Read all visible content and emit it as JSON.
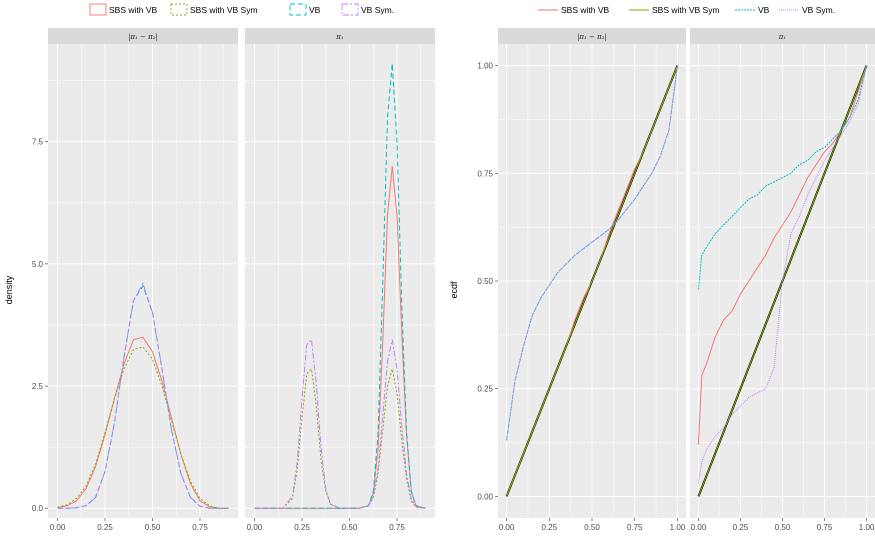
{
  "chart_data": [
    {
      "type": "line",
      "plot": "density",
      "ylabel": "density",
      "xlabel": "",
      "legend_position": "top",
      "legend_style": "box",
      "ylim": [
        -0.2,
        9.5
      ],
      "xlim": [
        -0.05,
        0.95
      ],
      "x_ticks": [
        "0.00",
        "0.25",
        "0.50",
        "0.75"
      ],
      "y_ticks": [
        "0.0",
        "2.5",
        "5.0",
        "7.5"
      ],
      "grid": true,
      "series": [
        {
          "name": "SBS with VB",
          "color": "#F8766D",
          "dash": ""
        },
        {
          "name": "SBS with VB Sym",
          "color": "#7CAE00",
          "dash": "2,2"
        },
        {
          "name": "VB",
          "color": "#00BFC4",
          "dash": "5,3"
        },
        {
          "name": "VB Sym.",
          "color": "#C77CFF",
          "dash": "6,2,2,2"
        }
      ],
      "panels": [
        {
          "strip": "|π₁ − π₂|",
          "x": [
            0.0,
            0.05,
            0.1,
            0.15,
            0.2,
            0.25,
            0.3,
            0.35,
            0.4,
            0.45,
            0.5,
            0.55,
            0.6,
            0.65,
            0.7,
            0.75,
            0.8,
            0.85,
            0.9
          ],
          "values": [
            [
              0.01,
              0.05,
              0.15,
              0.4,
              0.85,
              1.5,
              2.25,
              2.95,
              3.45,
              3.5,
              3.2,
              2.6,
              1.85,
              1.1,
              0.5,
              0.15,
              0.03,
              0.0,
              0.0
            ],
            [
              0.02,
              0.07,
              0.2,
              0.45,
              0.9,
              1.55,
              2.25,
              2.85,
              3.25,
              3.3,
              3.05,
              2.5,
              1.8,
              1.1,
              0.55,
              0.2,
              0.05,
              0.0,
              0.0
            ],
            [
              0.0,
              0.0,
              0.01,
              0.05,
              0.22,
              0.75,
              1.75,
              3.1,
              4.25,
              4.55,
              4.0,
              2.85,
              1.6,
              0.7,
              0.22,
              0.04,
              0.0,
              0.0,
              0.0
            ],
            [
              0.0,
              0.0,
              0.01,
              0.05,
              0.22,
              0.75,
              1.75,
              3.1,
              4.25,
              4.6,
              4.0,
              2.85,
              1.6,
              0.7,
              0.22,
              0.04,
              0.0,
              0.0,
              0.0
            ]
          ]
        },
        {
          "strip": "π₁",
          "x": [
            0.0,
            0.1,
            0.15,
            0.2,
            0.225,
            0.25,
            0.275,
            0.3,
            0.325,
            0.35,
            0.375,
            0.4,
            0.45,
            0.5,
            0.55,
            0.6,
            0.625,
            0.65,
            0.675,
            0.7,
            0.725,
            0.75,
            0.775,
            0.8,
            0.825,
            0.85,
            0.9
          ],
          "values": [
            [
              0,
              0,
              0,
              0,
              0,
              0,
              0,
              0,
              0,
              0,
              0,
              0,
              0,
              0,
              0,
              0.05,
              0.3,
              1.2,
              3.4,
              6.0,
              7.0,
              6.0,
              3.6,
              1.5,
              0.35,
              0.05,
              0
            ],
            [
              0,
              0,
              0,
              0.2,
              0.8,
              1.85,
              2.75,
              2.85,
              2.1,
              1.0,
              0.35,
              0.08,
              0,
              0,
              0,
              0.05,
              0.2,
              0.7,
              1.6,
              2.5,
              2.85,
              2.35,
              1.4,
              0.6,
              0.15,
              0.02,
              0
            ],
            [
              0,
              0,
              0,
              0,
              0,
              0,
              0,
              0,
              0,
              0,
              0,
              0,
              0,
              0,
              0,
              0.05,
              0.35,
              1.5,
              4.6,
              8.0,
              9.1,
              7.5,
              4.2,
              1.6,
              0.35,
              0.05,
              0
            ],
            [
              0,
              0,
              0,
              0.25,
              0.95,
              2.25,
              3.35,
              3.45,
              2.55,
              1.25,
              0.4,
              0.08,
              0,
              0,
              0,
              0.05,
              0.25,
              0.8,
              1.9,
              3.0,
              3.45,
              2.85,
              1.7,
              0.7,
              0.2,
              0.03,
              0
            ]
          ]
        }
      ]
    },
    {
      "type": "line",
      "plot": "ecdf",
      "ylabel": "ecdf",
      "xlabel": "",
      "legend_position": "top",
      "legend_style": "line",
      "ylim": [
        -0.05,
        1.05
      ],
      "xlim": [
        -0.05,
        1.05
      ],
      "x_ticks": [
        "0.00",
        "0.25",
        "0.50",
        "0.75",
        "1.00"
      ],
      "y_ticks": [
        "0.00",
        "0.25",
        "0.50",
        "0.75",
        "1.00"
      ],
      "grid": true,
      "reference_line": "#000000",
      "series": [
        {
          "name": "SBS with VB",
          "color": "#F8766D",
          "dash": ""
        },
        {
          "name": "SBS with VB Sym",
          "color": "#7CAE00",
          "dash": ""
        },
        {
          "name": "VB",
          "color": "#00BFC4",
          "dash": "2,1"
        },
        {
          "name": "VB Sym.",
          "color": "#C77CFF",
          "dash": "1,1"
        }
      ],
      "panels": [
        {
          "strip": "|π₁ − π₂|",
          "x": [
            0.0,
            0.05,
            0.1,
            0.15,
            0.2,
            0.25,
            0.3,
            0.35,
            0.4,
            0.45,
            0.5,
            0.55,
            0.6,
            0.65,
            0.7,
            0.75,
            0.8,
            0.85,
            0.9,
            0.95,
            1.0
          ],
          "values": [
            [
              0.0,
              0.05,
              0.1,
              0.15,
              0.2,
              0.25,
              0.3,
              0.35,
              0.41,
              0.46,
              0.5,
              0.55,
              0.61,
              0.66,
              0.71,
              0.76,
              0.8,
              0.85,
              0.9,
              0.95,
              1.0
            ],
            [
              0.0,
              0.05,
              0.1,
              0.15,
              0.2,
              0.25,
              0.3,
              0.35,
              0.4,
              0.45,
              0.5,
              0.55,
              0.6,
              0.65,
              0.7,
              0.75,
              0.8,
              0.85,
              0.9,
              0.95,
              1.0
            ],
            [
              0.13,
              0.27,
              0.35,
              0.42,
              0.46,
              0.49,
              0.52,
              0.54,
              0.56,
              0.575,
              0.59,
              0.605,
              0.62,
              0.64,
              0.665,
              0.69,
              0.72,
              0.75,
              0.79,
              0.85,
              1.0
            ],
            [
              0.13,
              0.27,
              0.35,
              0.42,
              0.46,
              0.49,
              0.52,
              0.54,
              0.56,
              0.575,
              0.59,
              0.605,
              0.62,
              0.64,
              0.665,
              0.69,
              0.72,
              0.75,
              0.79,
              0.85,
              1.0
            ]
          ]
        },
        {
          "strip": "π₁",
          "x": [
            0.0,
            0.02,
            0.05,
            0.1,
            0.15,
            0.2,
            0.25,
            0.3,
            0.35,
            0.4,
            0.45,
            0.5,
            0.55,
            0.6,
            0.65,
            0.7,
            0.75,
            0.8,
            0.85,
            0.9,
            0.95,
            1.0
          ],
          "values": [
            [
              0.12,
              0.28,
              0.31,
              0.37,
              0.41,
              0.43,
              0.47,
              0.5,
              0.53,
              0.56,
              0.6,
              0.63,
              0.66,
              0.7,
              0.74,
              0.77,
              0.8,
              0.82,
              0.85,
              0.88,
              0.94,
              1.0
            ],
            [
              0.0,
              0.02,
              0.05,
              0.1,
              0.15,
              0.2,
              0.25,
              0.3,
              0.35,
              0.4,
              0.45,
              0.5,
              0.55,
              0.6,
              0.65,
              0.7,
              0.75,
              0.8,
              0.85,
              0.9,
              0.95,
              1.0
            ],
            [
              0.48,
              0.56,
              0.58,
              0.61,
              0.63,
              0.65,
              0.67,
              0.69,
              0.7,
              0.72,
              0.73,
              0.74,
              0.75,
              0.77,
              0.78,
              0.8,
              0.81,
              0.83,
              0.85,
              0.88,
              0.92,
              1.0
            ],
            [
              0.03,
              0.08,
              0.11,
              0.14,
              0.16,
              0.19,
              0.21,
              0.23,
              0.24,
              0.25,
              0.3,
              0.5,
              0.61,
              0.65,
              0.7,
              0.74,
              0.78,
              0.81,
              0.84,
              0.87,
              0.91,
              1.0
            ]
          ]
        }
      ]
    }
  ]
}
